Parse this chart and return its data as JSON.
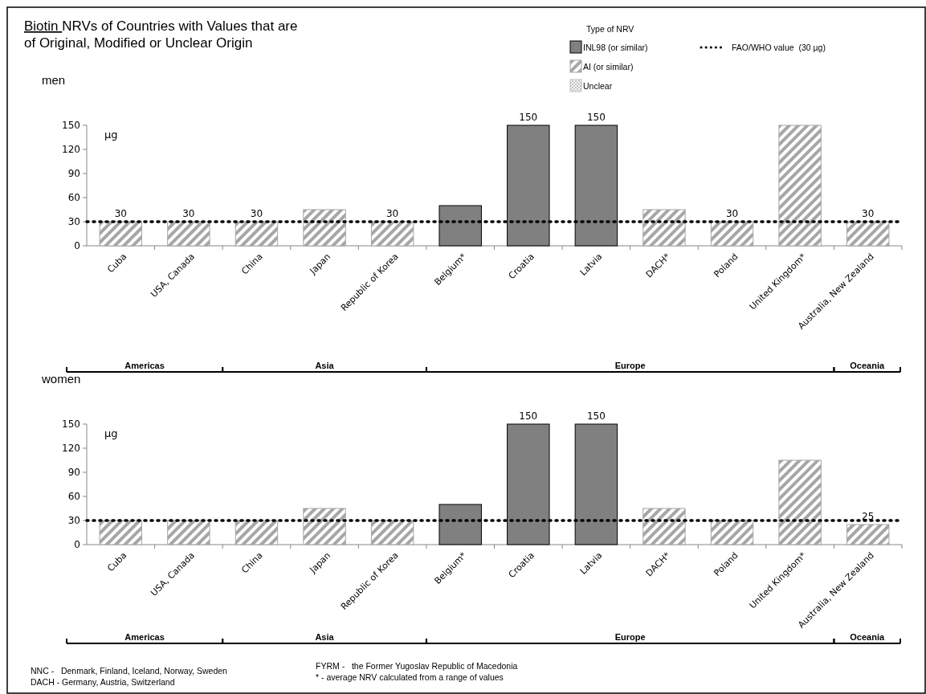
{
  "chart_data": [
    {
      "type": "bar",
      "title": "Biotin NRVs of Countries with Values that are of Original, Modified or Unclear Origin",
      "subtitle": "men",
      "ylabel": "µg",
      "legend_title": "Type of NRV",
      "categories": [
        "Cuba",
        "USA, Canada",
        "China",
        "Japan",
        "Republic of Korea",
        "Belgium*",
        "Croatia",
        "Latvia",
        "DACH*",
        "Poland",
        "United Kingdom*",
        "Australia, New Zealand"
      ],
      "series": [
        {
          "name": "INL98 (or similar)",
          "color": "#808080",
          "values": [
            null,
            null,
            null,
            null,
            null,
            50,
            150,
            150,
            null,
            null,
            null,
            null
          ],
          "value_labels": [
            null,
            null,
            null,
            null,
            null,
            null,
            "150",
            "150",
            null,
            null,
            null,
            null
          ]
        },
        {
          "name": "AI (or similar)",
          "color": "#a6a6a6",
          "values": [
            30,
            30,
            30,
            45,
            30,
            null,
            null,
            null,
            45,
            30,
            150,
            30
          ],
          "value_labels": [
            "30",
            "30",
            "30",
            null,
            "30",
            null,
            null,
            null,
            null,
            "30",
            null,
            "30"
          ]
        },
        {
          "name": "Unclear",
          "color": "#bfbfbf",
          "values": [
            null,
            null,
            null,
            null,
            null,
            null,
            null,
            null,
            null,
            null,
            null,
            null
          ]
        }
      ],
      "ylim": [
        0,
        150
      ],
      "yticks": [
        0,
        30,
        60,
        90,
        120,
        150
      ],
      "grid": false,
      "legend": "top right",
      "ref_lines": [
        {
          "axis": "y",
          "value": 30,
          "label": "FAO/WHO value  (30 µg)",
          "color": "#000000",
          "line_style": "dotted"
        }
      ],
      "annotations": [
        "Americas",
        "Asia",
        "Europe",
        "Oceania"
      ]
    },
    {
      "type": "bar",
      "subtitle": "women",
      "ylabel": "µg",
      "categories": [
        "Cuba",
        "USA, Canada",
        "China",
        "Japan",
        "Republic of Korea",
        "Belgium*",
        "Croatia",
        "Latvia",
        "DACH*",
        "Poland",
        "United Kingdom*",
        "Australia, New Zealand"
      ],
      "series": [
        {
          "color": "#808080",
          "values": [
            null,
            null,
            null,
            null,
            null,
            50,
            150,
            150,
            null,
            null,
            null,
            null
          ],
          "value_labels": [
            null,
            null,
            null,
            null,
            null,
            null,
            "150",
            "150",
            null,
            null,
            null,
            null
          ]
        },
        {
          "color": "#a6a6a6",
          "values": [
            30,
            30,
            30,
            45,
            30,
            null,
            null,
            null,
            45,
            30,
            105,
            25
          ],
          "value_labels": [
            null,
            null,
            null,
            null,
            null,
            null,
            null,
            null,
            null,
            null,
            null,
            "25"
          ]
        }
      ],
      "ylim": [
        0,
        150
      ],
      "yticks": [
        0,
        30,
        60,
        90,
        120,
        150
      ],
      "grid": false,
      "legend": false,
      "ref_lines": [
        {
          "axis": "y",
          "value": 30,
          "color": "#000000",
          "line_style": "dotted"
        }
      ],
      "annotations": [
        "Americas",
        "Asia",
        "Europe",
        "Oceania",
        "NNC -   Denmark, Finland, Iceland, Norway, Sweden",
        "DACH - Germany, Austria, Switzerland",
        "FYRM -   the Former Yugoslav Republic of Macedonia",
        "* - average NRV calculated from a range of values"
      ]
    }
  ]
}
